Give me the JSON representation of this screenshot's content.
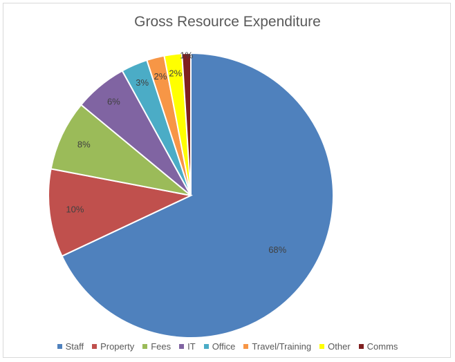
{
  "chart_data": {
    "type": "pie",
    "title": "Gross Resource Expenditure",
    "categories": [
      "Staff",
      "Property",
      "Fees",
      "IT",
      "Office",
      "Travel/Training",
      "Other",
      "Comms"
    ],
    "values": [
      68,
      10,
      8,
      6,
      3,
      2,
      2,
      1
    ],
    "labels": [
      "68%",
      "10%",
      "8%",
      "6%",
      "3%",
      "2%",
      "2%",
      "1%"
    ],
    "colors": [
      "#4f81bd",
      "#c0504d",
      "#9bbb59",
      "#8064a2",
      "#4bacc6",
      "#f79646",
      "#ffff00",
      "#7f1f1f"
    ],
    "legend_position": "bottom"
  }
}
